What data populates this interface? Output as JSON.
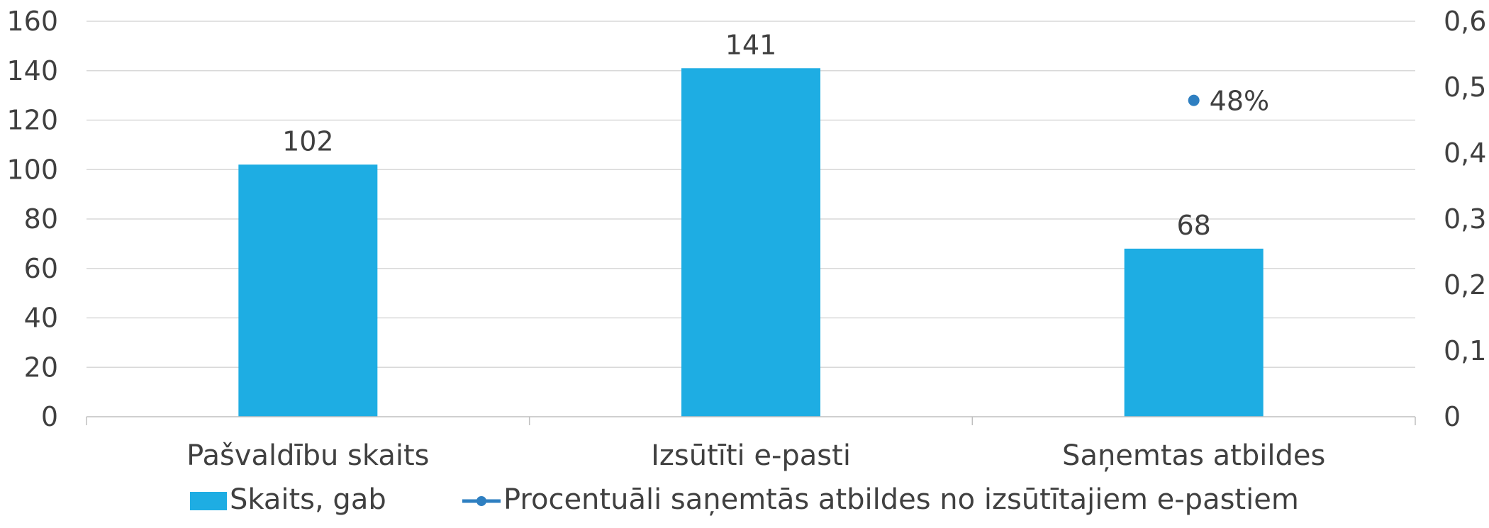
{
  "chart_data": {
    "type": "bar",
    "categories": [
      "Pašvaldību skaits",
      "Izsūtīti e-pasti",
      "Saņemtas atbildes"
    ],
    "series": [
      {
        "name": "Skaits, gab",
        "type": "bar",
        "axis": "left",
        "color": "#1EADE3",
        "values": [
          102,
          141,
          68
        ],
        "labels": [
          "102",
          "141",
          "68"
        ]
      },
      {
        "name": "Procentuāli saņemtās atbildes no izsūtītajiem e-pastiem",
        "type": "line",
        "axis": "right",
        "color": "#2E7FC1",
        "values": [
          null,
          null,
          0.48
        ],
        "labels": [
          "",
          "",
          "48%"
        ]
      }
    ],
    "y_left": {
      "ylim": [
        0,
        160
      ],
      "ticks": [
        "0",
        "20",
        "40",
        "60",
        "80",
        "100",
        "120",
        "140",
        "160"
      ]
    },
    "y_right": {
      "ylim": [
        0,
        0.6
      ],
      "ticks": [
        "0",
        "0,1",
        "0,2",
        "0,3",
        "0,4",
        "0,5",
        "0,6"
      ]
    },
    "grid": true,
    "legend_position": "bottom",
    "colors": {
      "bar": "#1EADE3",
      "line": "#2E7FC1",
      "grid": "#D9D9D9",
      "axis": "#BFBFBF",
      "text": "#404040"
    }
  }
}
